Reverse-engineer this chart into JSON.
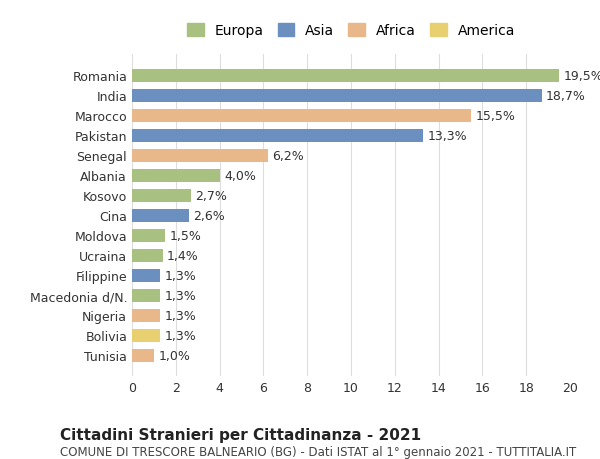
{
  "countries": [
    "Romania",
    "India",
    "Marocco",
    "Pakistan",
    "Senegal",
    "Albania",
    "Kosovo",
    "Cina",
    "Moldova",
    "Ucraina",
    "Filippine",
    "Macedonia d/N.",
    "Nigeria",
    "Bolivia",
    "Tunisia"
  ],
  "values": [
    19.5,
    18.7,
    15.5,
    13.3,
    6.2,
    4.0,
    2.7,
    2.6,
    1.5,
    1.4,
    1.3,
    1.3,
    1.3,
    1.3,
    1.0
  ],
  "labels": [
    "19,5%",
    "18,7%",
    "15,5%",
    "13,3%",
    "6,2%",
    "4,0%",
    "2,7%",
    "2,6%",
    "1,5%",
    "1,4%",
    "1,3%",
    "1,3%",
    "1,3%",
    "1,3%",
    "1,0%"
  ],
  "continents": [
    "Europa",
    "Asia",
    "Africa",
    "Asia",
    "Africa",
    "Europa",
    "Europa",
    "Asia",
    "Europa",
    "Europa",
    "Asia",
    "Europa",
    "Africa",
    "America",
    "Africa"
  ],
  "continent_colors": {
    "Europa": "#a8c080",
    "Asia": "#6b8fbe",
    "Africa": "#e8b88a",
    "America": "#e8d070"
  },
  "legend_order": [
    "Europa",
    "Asia",
    "Africa",
    "America"
  ],
  "title": "Cittadini Stranieri per Cittadinanza - 2021",
  "subtitle": "COMUNE DI TRESCORE BALNEARIO (BG) - Dati ISTAT al 1° gennaio 2021 - TUTTITALIA.IT",
  "xlim": [
    0,
    20
  ],
  "xticks": [
    0,
    2,
    4,
    6,
    8,
    10,
    12,
    14,
    16,
    18,
    20
  ],
  "background_color": "#ffffff",
  "grid_color": "#dddddd",
  "bar_height": 0.65,
  "title_fontsize": 11,
  "subtitle_fontsize": 8.5,
  "label_fontsize": 9,
  "tick_fontsize": 9,
  "legend_fontsize": 10
}
